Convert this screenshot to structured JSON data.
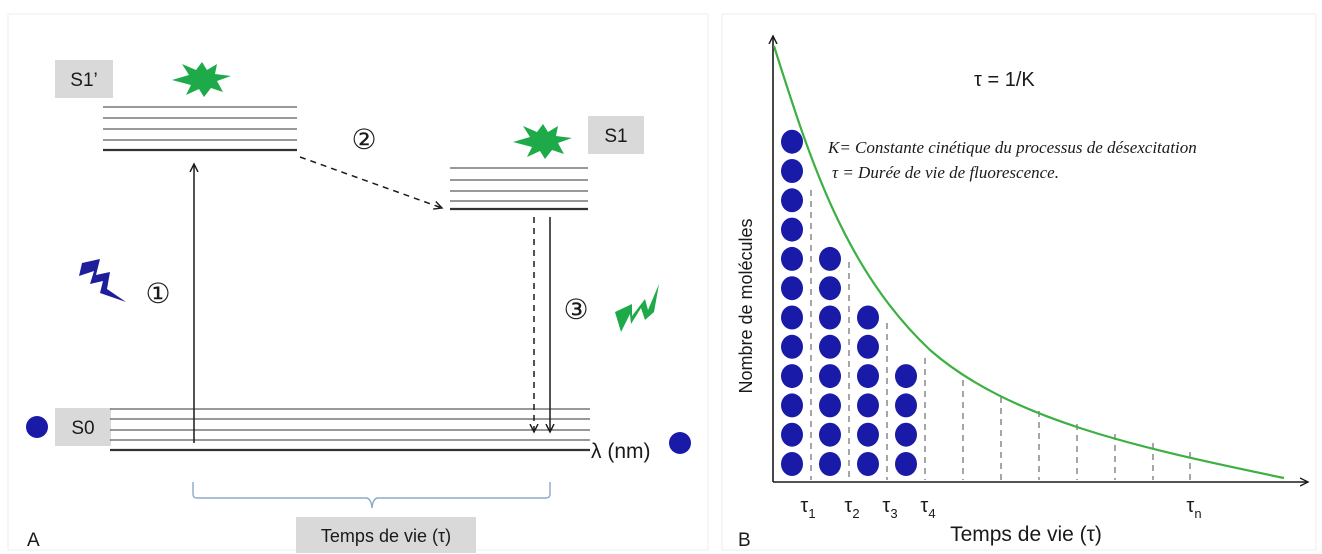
{
  "panel_a": {
    "panel_label": "A",
    "levels": {
      "s1_prime": "S1’",
      "s1": "S1",
      "s0": "S0"
    },
    "steps": {
      "step1": "①",
      "step2": "②",
      "step3": "③"
    },
    "wavelength_label": "λ (nm)",
    "lifetime_label": "Temps de vie (τ)"
  },
  "panel_b": {
    "panel_label": "B",
    "formula": "τ = 1/K",
    "legend_k": "K= Constante cinétique du processus de désexcitation",
    "legend_tau": "τ = Durée de vie de fluorescence.",
    "y_axis_label": "Nombre de molécules",
    "x_axis_label": "Temps de vie (τ)",
    "tick_labels": [
      {
        "main": "τ",
        "sub": "1"
      },
      {
        "main": "τ",
        "sub": "2"
      },
      {
        "main": "τ",
        "sub": "3"
      },
      {
        "main": "τ",
        "sub": "4"
      },
      {
        "main": "τ",
        "sub": "n"
      }
    ],
    "molecule_columns": [
      12,
      8,
      6,
      4
    ]
  },
  "colors": {
    "molecule": "#1a1aa8",
    "curve": "#3cb043",
    "star": "#1faa4a",
    "absorption_bolt": "#1e1e9c",
    "emission_bolt": "#1faa4a",
    "label_box": "#d9d9d9",
    "bracket": "#8ea9c8"
  }
}
